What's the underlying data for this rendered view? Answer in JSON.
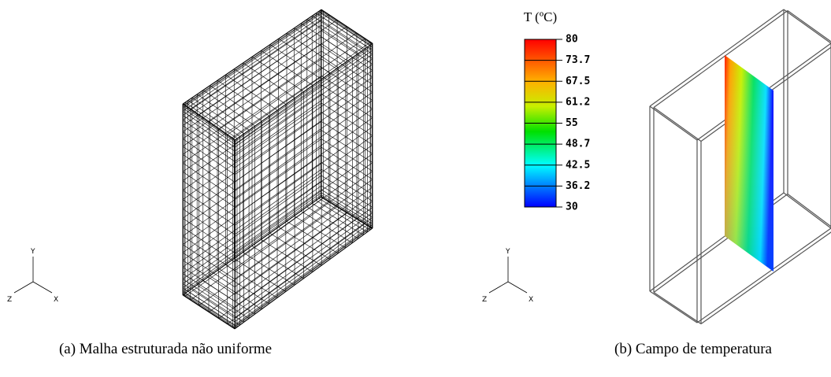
{
  "panels": [
    {
      "caption": "(a) Malha estruturada não uniforme",
      "axes": {
        "y": "Y",
        "x": "X",
        "z": "Z"
      }
    },
    {
      "caption": "(b) Campo de temperatura",
      "axes": {
        "y": "Y",
        "x": "X",
        "z": "Z"
      },
      "colorbar": {
        "title": "T (ºC)",
        "ticks": [
          "80",
          "73.7",
          "67.5",
          "61.2",
          "55",
          "48.7",
          "42.5",
          "36.2",
          "30"
        ]
      }
    }
  ]
}
